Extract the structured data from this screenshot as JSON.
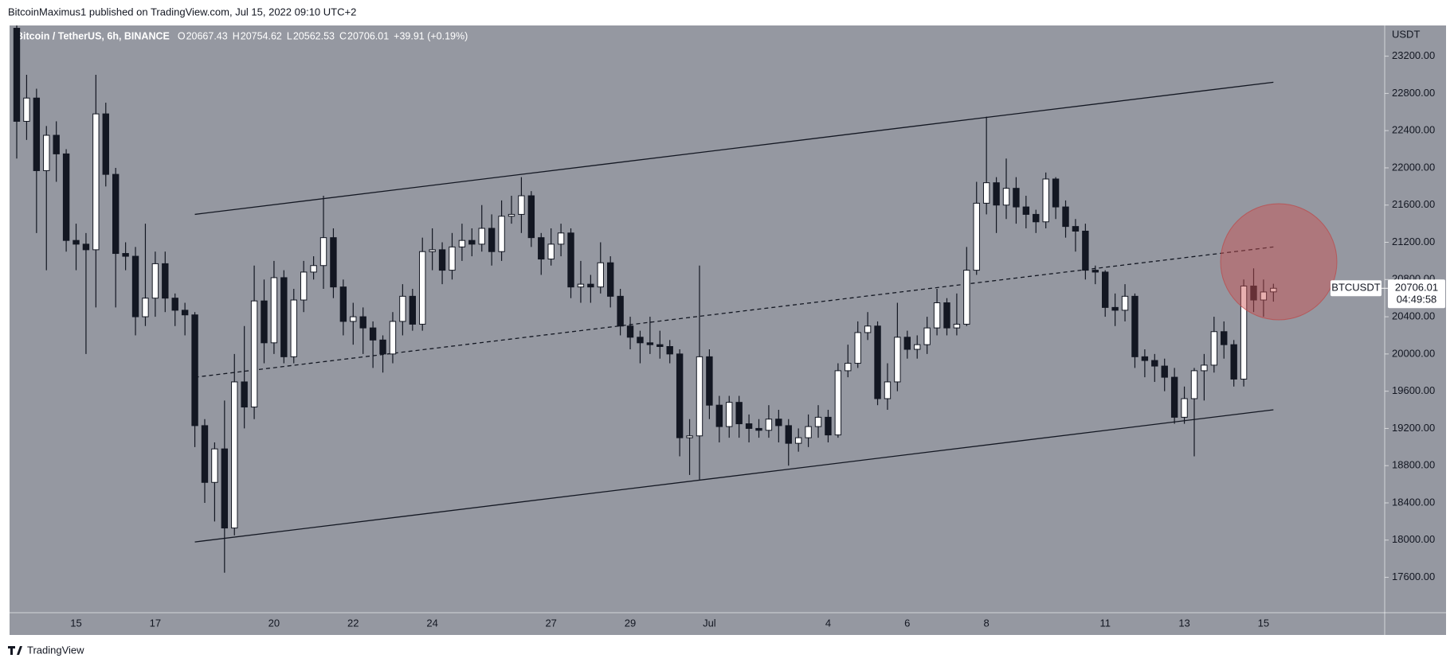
{
  "header": {
    "byline": "BitcoinMaximus1 published on TradingView.com, Jul 15, 2022 09:10 UTC+2",
    "brand": "TradingView"
  },
  "chart_data": {
    "type": "candlestick",
    "title": "Bitcoin / TetherUS, 6h, BINANCE",
    "ohlc_letters": [
      "O",
      "H",
      "L",
      "C"
    ],
    "change": "+39.91 (+0.19%)",
    "symbol_tag": "BTCUSDT",
    "countdown": "04:49:58",
    "y_axis_label": "USDT",
    "up_color": "#ffffff",
    "down_color": "#131722",
    "background": "#9598a1",
    "categories": [
      null,
      null,
      null,
      null,
      null,
      null,
      "15",
      null,
      null,
      null,
      null,
      null,
      null,
      null,
      "17",
      null,
      null,
      null,
      null,
      null,
      null,
      null,
      null,
      null,
      null,
      null,
      "20",
      null,
      null,
      null,
      null,
      null,
      null,
      null,
      "22",
      null,
      null,
      null,
      null,
      null,
      null,
      null,
      "24",
      null,
      null,
      null,
      null,
      null,
      null,
      null,
      null,
      null,
      null,
      null,
      "27",
      null,
      null,
      null,
      null,
      null,
      null,
      null,
      "29",
      null,
      null,
      null,
      null,
      null,
      null,
      null,
      "Jul",
      null,
      null,
      null,
      null,
      null,
      null,
      null,
      null,
      null,
      null,
      null,
      "4",
      null,
      null,
      null,
      null,
      null,
      null,
      null,
      "6",
      null,
      null,
      null,
      null,
      null,
      null,
      null,
      "8",
      null,
      null,
      null,
      null,
      null,
      null,
      null,
      null,
      null,
      null,
      null,
      "11",
      null,
      null,
      null,
      null,
      null,
      null,
      null,
      "13",
      null,
      null,
      null,
      null,
      null,
      null,
      null,
      "15",
      null
    ],
    "open": [
      23500,
      22500,
      22750,
      21970,
      22350,
      22150,
      21220,
      21180,
      21120,
      22580,
      21930,
      21080,
      21050,
      20400,
      20600,
      20970,
      20600,
      20470,
      20420,
      19230,
      18620,
      18980,
      18130,
      19700,
      19430,
      20570,
      20120,
      20820,
      19970,
      20580,
      20880,
      20950,
      21250,
      20720,
      20350,
      20400,
      20280,
      20150,
      20000,
      20350,
      20620,
      20320,
      21100,
      21120,
      20900,
      21150,
      21220,
      21180,
      21350,
      21100,
      21480,
      21500,
      21700,
      21250,
      21020,
      21180,
      21300,
      20720,
      20750,
      20720,
      20980,
      20620,
      20300,
      20180,
      20120,
      20100,
      20080,
      20000,
      19100,
      19120,
      19970,
      19450,
      19220,
      19480,
      19250,
      19200,
      19180,
      19300,
      19230,
      19040,
      19100,
      19220,
      19320,
      19130,
      19820,
      19900,
      20230,
      20300,
      19520,
      19700,
      20180,
      20050,
      20100,
      20280,
      20550,
      20280,
      20320,
      20900,
      21620,
      21840,
      21600,
      21780,
      21580,
      21500,
      21420,
      21880,
      21580,
      21370,
      21320,
      20900,
      20880,
      20500,
      20470,
      20620,
      19970,
      19930,
      19870,
      19750,
      19320,
      19520,
      19820,
      19880,
      20240,
      20100,
      19730,
      20730,
      20580,
      20667.43
    ],
    "high": [
      23600,
      23000,
      22850,
      22450,
      22500,
      22200,
      21400,
      21300,
      23000,
      22700,
      22000,
      21200,
      21150,
      21400,
      21100,
      21100,
      20650,
      20550,
      20450,
      19300,
      19050,
      19500,
      20000,
      20300,
      20950,
      20800,
      21000,
      20900,
      20700,
      21000,
      21050,
      21700,
      21350,
      20800,
      20550,
      20500,
      20350,
      20200,
      20450,
      20750,
      20700,
      21250,
      21350,
      21200,
      21300,
      21400,
      21350,
      21600,
      21500,
      21650,
      21700,
      21900,
      21750,
      21300,
      21350,
      21400,
      21350,
      21000,
      20850,
      21200,
      21050,
      20700,
      20400,
      20250,
      20400,
      20250,
      20150,
      20050,
      19300,
      20950,
      20050,
      19550,
      19550,
      19550,
      19350,
      19300,
      19450,
      19400,
      19300,
      19200,
      19350,
      19450,
      19400,
      19900,
      20100,
      20350,
      20450,
      20350,
      19900,
      20550,
      20250,
      20200,
      20400,
      20700,
      20600,
      20650,
      21150,
      21850,
      22550,
      21900,
      22100,
      21900,
      21700,
      21550,
      21950,
      21900,
      21650,
      21450,
      21400,
      20950,
      20900,
      20650,
      20750,
      20650,
      20050,
      20000,
      19950,
      19850,
      19650,
      19850,
      20000,
      20400,
      20350,
      20150,
      20800,
      20920,
      20800,
      20754.62
    ],
    "low": [
      22100,
      22300,
      21300,
      20900,
      21850,
      21100,
      20900,
      20000,
      20500,
      21800,
      20500,
      20900,
      20200,
      20300,
      20400,
      20450,
      20300,
      20200,
      19000,
      18400,
      18200,
      17650,
      18050,
      19200,
      19300,
      19900,
      20000,
      19900,
      19900,
      20450,
      20800,
      20700,
      20600,
      20200,
      20100,
      20000,
      19850,
      19800,
      19900,
      20200,
      20250,
      20250,
      20900,
      20750,
      20800,
      21000,
      21050,
      21100,
      20950,
      21000,
      21400,
      21300,
      21150,
      20850,
      20950,
      21050,
      20600,
      20550,
      20550,
      20650,
      20500,
      20200,
      20050,
      19900,
      20000,
      19950,
      19900,
      18900,
      18700,
      18650,
      19300,
      19050,
      19100,
      19100,
      19050,
      19100,
      19100,
      19050,
      18800,
      18950,
      19000,
      19100,
      19050,
      19100,
      19750,
      19850,
      20150,
      19450,
      19400,
      19600,
      19950,
      19950,
      20000,
      20200,
      20200,
      20200,
      20300,
      20850,
      21500,
      21300,
      21450,
      21400,
      21350,
      21300,
      21350,
      21450,
      21250,
      21100,
      20800,
      20750,
      20400,
      20300,
      20350,
      19850,
      19750,
      19700,
      19600,
      19250,
      19250,
      18900,
      19500,
      19800,
      19950,
      19650,
      19650,
      20450,
      20400,
      20562.53
    ],
    "close": [
      22500,
      22750,
      21970,
      22350,
      22150,
      21220,
      21180,
      21120,
      22580,
      21930,
      21080,
      21050,
      20400,
      20600,
      20970,
      20600,
      20470,
      20420,
      19230,
      18620,
      18980,
      18130,
      19700,
      19430,
      20570,
      20120,
      20820,
      19970,
      20580,
      20880,
      20950,
      21250,
      20720,
      20350,
      20400,
      20280,
      20150,
      20000,
      20350,
      20620,
      20320,
      21100,
      21120,
      20900,
      21150,
      21220,
      21180,
      21350,
      21100,
      21480,
      21500,
      21700,
      21250,
      21020,
      21180,
      21300,
      20720,
      20750,
      20720,
      20980,
      20620,
      20300,
      20180,
      20120,
      20100,
      20080,
      20000,
      19100,
      19120,
      19970,
      19450,
      19220,
      19480,
      19250,
      19200,
      19180,
      19300,
      19230,
      19040,
      19100,
      19220,
      19320,
      19130,
      19820,
      19900,
      20230,
      20300,
      19520,
      19700,
      20180,
      20050,
      20100,
      20280,
      20550,
      20280,
      20320,
      20900,
      21620,
      21840,
      21600,
      21780,
      21580,
      21500,
      21420,
      21880,
      21580,
      21370,
      21320,
      20900,
      20880,
      20500,
      20470,
      20620,
      19970,
      19930,
      19870,
      19750,
      19320,
      19520,
      19820,
      19880,
      20240,
      20100,
      19730,
      20730,
      20580,
      20666.1,
      20706.01
    ],
    "ylim": [
      17220,
      23530
    ],
    "yticks": [
      {
        "value": 17600,
        "label": "17600.00"
      },
      {
        "value": 18000,
        "label": "18000.00"
      },
      {
        "value": 18400,
        "label": "18400.00"
      },
      {
        "value": 18800,
        "label": "18800.00"
      },
      {
        "value": 19200,
        "label": "19200.00"
      },
      {
        "value": 19600,
        "label": "19600.00"
      },
      {
        "value": 20000,
        "label": "20000.00"
      },
      {
        "value": 20400,
        "label": "20400.00"
      },
      {
        "value": 20800,
        "label": "20800.00"
      },
      {
        "value": 21200,
        "label": "21200.00"
      },
      {
        "value": 21600,
        "label": "21600.00"
      },
      {
        "value": 22000,
        "label": "22000.00"
      },
      {
        "value": 22400,
        "label": "22400.00"
      },
      {
        "value": 22800,
        "label": "22800.00"
      },
      {
        "value": 23200,
        "label": "23200.00"
      }
    ],
    "trendlines": [
      {
        "x": [
          18,
          127
        ],
        "y": [
          21500,
          22920
        ],
        "dashed": false
      },
      {
        "x": [
          18,
          127
        ],
        "y": [
          19750,
          21150
        ],
        "dashed": true
      },
      {
        "x": [
          18,
          127
        ],
        "y": [
          17980,
          19400
        ],
        "dashed": false
      }
    ]
  }
}
